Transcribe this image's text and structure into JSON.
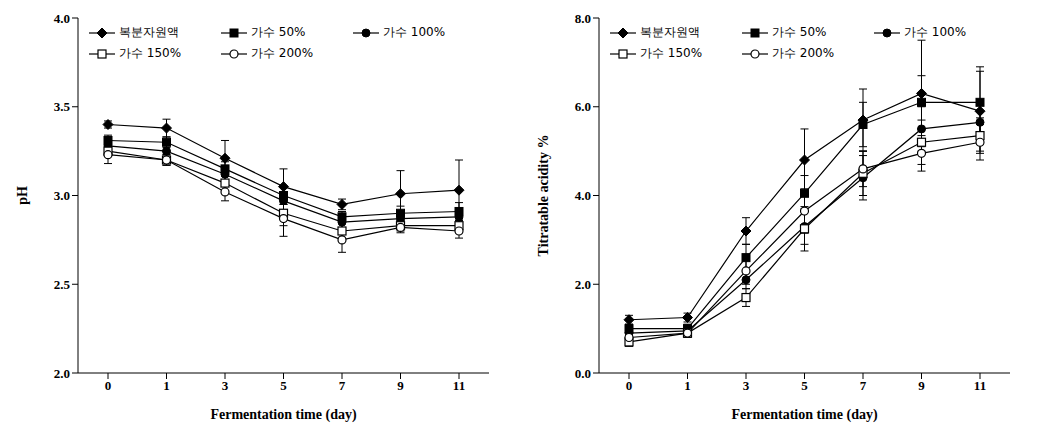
{
  "chart_data": [
    {
      "type": "line",
      "x_label": "Fermentation time (day)",
      "y_label": "pH",
      "categories": [
        "0",
        "1",
        "3",
        "5",
        "7",
        "9",
        "11"
      ],
      "ylim": [
        2.0,
        4.0
      ],
      "yticks": [
        {
          "value": 2.0,
          "label": "2.0"
        },
        {
          "value": 2.5,
          "label": "2.5"
        },
        {
          "value": 3.0,
          "label": "3.0"
        },
        {
          "value": 3.5,
          "label": "3.5"
        },
        {
          "value": 4.0,
          "label": "4.0"
        }
      ],
      "legend": "upper left",
      "grid": false,
      "series": [
        {
          "name": "복분자원액",
          "color": "#000000",
          "marker": "diamond",
          "values": [
            3.4,
            3.38,
            3.21,
            3.05,
            2.95,
            3.01,
            3.03
          ],
          "errors": [
            0.02,
            0.05,
            0.1,
            0.1,
            0.03,
            0.13,
            0.17
          ]
        },
        {
          "name": "가수 50%",
          "color": "#000000",
          "marker": "square",
          "values": [
            3.31,
            3.3,
            3.15,
            3.0,
            2.88,
            2.9,
            2.91
          ],
          "errors": [
            0.03,
            0.03,
            0.04,
            0.05,
            0.03,
            0.04,
            0.05
          ]
        },
        {
          "name": "가수 100%",
          "color": "#000000",
          "marker": "circle",
          "values": [
            3.28,
            3.25,
            3.12,
            2.97,
            2.85,
            2.87,
            2.88
          ],
          "errors": [
            0.03,
            0.03,
            0.04,
            0.05,
            0.04,
            0.03,
            0.04
          ]
        },
        {
          "name": "가수 150%",
          "color": "#000000",
          "marker": "open_square",
          "values": [
            3.25,
            3.2,
            3.07,
            2.9,
            2.8,
            2.83,
            2.83
          ],
          "errors": [
            0.03,
            0.03,
            0.05,
            0.07,
            0.05,
            0.03,
            0.04
          ]
        },
        {
          "name": "가수 200%",
          "color": "#000000",
          "marker": "open_circle",
          "values": [
            3.23,
            3.2,
            3.02,
            2.87,
            2.75,
            2.82,
            2.8
          ],
          "errors": [
            0.05,
            0.03,
            0.05,
            0.1,
            0.07,
            0.03,
            0.04
          ]
        }
      ]
    },
    {
      "type": "line",
      "x_label": "Fermentation time (day)",
      "y_label": "Titratable acidity %",
      "categories": [
        "0",
        "1",
        "3",
        "5",
        "7",
        "9",
        "11"
      ],
      "ylim": [
        0,
        8
      ],
      "yticks": [
        {
          "value": 0,
          "label": "0.0"
        },
        {
          "value": 2,
          "label": "2.0"
        },
        {
          "value": 4,
          "label": "4.0"
        },
        {
          "value": 6,
          "label": "6.0"
        },
        {
          "value": 8,
          "label": "8.0"
        }
      ],
      "legend": "upper left",
      "grid": false,
      "series": [
        {
          "name": "복분자원액",
          "color": "#000000",
          "marker": "diamond",
          "values": [
            1.2,
            1.25,
            3.2,
            4.8,
            5.7,
            6.3,
            5.9
          ],
          "errors": [
            0.1,
            0.1,
            0.3,
            0.7,
            0.7,
            1.2,
            0.9
          ]
        },
        {
          "name": "가수 50%",
          "color": "#000000",
          "marker": "square",
          "values": [
            1.0,
            1.0,
            2.6,
            4.05,
            5.6,
            6.1,
            6.1
          ],
          "errors": [
            0.1,
            0.1,
            0.3,
            0.4,
            0.5,
            0.6,
            0.8
          ]
        },
        {
          "name": "가수 100%",
          "color": "#000000",
          "marker": "circle",
          "values": [
            0.9,
            0.95,
            2.1,
            3.3,
            4.4,
            5.5,
            5.65
          ],
          "errors": [
            0.1,
            0.1,
            0.2,
            0.4,
            0.5,
            0.5,
            0.5
          ]
        },
        {
          "name": "가수 150%",
          "color": "#000000",
          "marker": "open_square",
          "values": [
            0.7,
            0.9,
            1.7,
            3.25,
            4.5,
            5.2,
            5.35
          ],
          "errors": [
            0.1,
            0.1,
            0.2,
            0.5,
            0.5,
            0.5,
            0.4
          ]
        },
        {
          "name": "가수 200%",
          "color": "#000000",
          "marker": "open_circle",
          "values": [
            0.8,
            0.9,
            2.3,
            3.65,
            4.6,
            4.95,
            5.2
          ],
          "errors": [
            0.1,
            0.1,
            0.3,
            0.5,
            0.4,
            0.4,
            0.4
          ]
        }
      ]
    }
  ]
}
